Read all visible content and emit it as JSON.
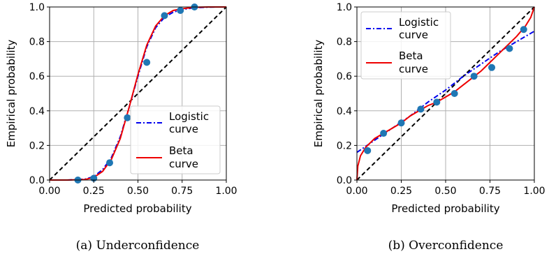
{
  "chart_data": [
    {
      "type": "line",
      "caption": "(a) Underconfidence",
      "xlabel": "Predicted probability",
      "ylabel": "Empirical probability",
      "xlim": [
        0,
        1
      ],
      "ylim": [
        0,
        1
      ],
      "grid": true,
      "x_ticks": [
        "0.00",
        "0.25",
        "0.50",
        "0.75",
        "1.00"
      ],
      "y_ticks": [
        "0.0",
        "0.2",
        "0.4",
        "0.6",
        "0.8",
        "1.0"
      ],
      "legend_position": "lower-right",
      "points": {
        "x": [
          0.16,
          0.25,
          0.34,
          0.44,
          0.55,
          0.65,
          0.74,
          0.82
        ],
        "y": [
          0.0,
          0.01,
          0.1,
          0.36,
          0.68,
          0.95,
          0.98,
          1.0
        ],
        "color": "#1f77b4"
      },
      "series": [
        {
          "name": [
            "Logistic",
            "curve"
          ],
          "style": "dashdot",
          "color": "#0000ee",
          "x": [
            0.1,
            0.2,
            0.25,
            0.3,
            0.35,
            0.4,
            0.45,
            0.5,
            0.55,
            0.6,
            0.65,
            0.7,
            0.75,
            0.8,
            0.85,
            0.9,
            0.95,
            1.0
          ],
          "y": [
            0.0,
            0.005,
            0.02,
            0.06,
            0.13,
            0.25,
            0.42,
            0.6,
            0.77,
            0.88,
            0.94,
            0.97,
            0.985,
            0.993,
            0.997,
            0.999,
            1.0,
            1.0
          ]
        },
        {
          "name": [
            "Beta",
            "curve"
          ],
          "style": "solid",
          "color": "#ee0000",
          "x": [
            0.0,
            0.1,
            0.2,
            0.25,
            0.3,
            0.35,
            0.4,
            0.45,
            0.5,
            0.55,
            0.6,
            0.65,
            0.7,
            0.75,
            0.8,
            0.85,
            0.9,
            0.95,
            1.0
          ],
          "y": [
            0.0,
            0.0,
            0.003,
            0.015,
            0.05,
            0.12,
            0.24,
            0.42,
            0.61,
            0.78,
            0.89,
            0.95,
            0.98,
            0.99,
            0.996,
            0.999,
            1.0,
            1.0,
            1.0
          ]
        }
      ],
      "diagonal": true
    },
    {
      "type": "line",
      "caption": "(b) Overconfidence",
      "xlabel": "Predicted probability",
      "ylabel": "Empirical probability",
      "xlim": [
        0,
        1
      ],
      "ylim": [
        0,
        1
      ],
      "grid": true,
      "x_ticks": [
        "0.00",
        "0.25",
        "0.50",
        "0.75",
        "1.00"
      ],
      "y_ticks": [
        "0.0",
        "0.2",
        "0.4",
        "0.6",
        "0.8",
        "1.0"
      ],
      "legend_position": "upper-left",
      "points": {
        "x": [
          0.06,
          0.15,
          0.25,
          0.36,
          0.45,
          0.55,
          0.66,
          0.76,
          0.86,
          0.94
        ],
        "y": [
          0.17,
          0.27,
          0.33,
          0.41,
          0.45,
          0.5,
          0.6,
          0.65,
          0.76,
          0.87
        ],
        "color": "#1f77b4"
      },
      "series": [
        {
          "name": [
            "Logistic",
            "curve"
          ],
          "style": "dashdot",
          "color": "#0000ee",
          "x": [
            0.0,
            0.1,
            0.2,
            0.3,
            0.4,
            0.5,
            0.6,
            0.7,
            0.8,
            0.9,
            1.0
          ],
          "y": [
            0.16,
            0.23,
            0.3,
            0.37,
            0.45,
            0.52,
            0.6,
            0.67,
            0.74,
            0.8,
            0.86
          ]
        },
        {
          "name": [
            "Beta",
            "curve"
          ],
          "style": "solid",
          "color": "#ee0000",
          "x": [
            0.0,
            0.005,
            0.02,
            0.05,
            0.1,
            0.15,
            0.2,
            0.25,
            0.3,
            0.35,
            0.4,
            0.45,
            0.5,
            0.55,
            0.6,
            0.65,
            0.7,
            0.75,
            0.8,
            0.85,
            0.9,
            0.95,
            0.98,
            1.0
          ],
          "y": [
            0.0,
            0.08,
            0.14,
            0.19,
            0.24,
            0.27,
            0.3,
            0.33,
            0.37,
            0.4,
            0.43,
            0.45,
            0.48,
            0.51,
            0.55,
            0.59,
            0.63,
            0.68,
            0.73,
            0.78,
            0.83,
            0.89,
            0.94,
            1.0
          ]
        }
      ],
      "diagonal": true
    }
  ]
}
